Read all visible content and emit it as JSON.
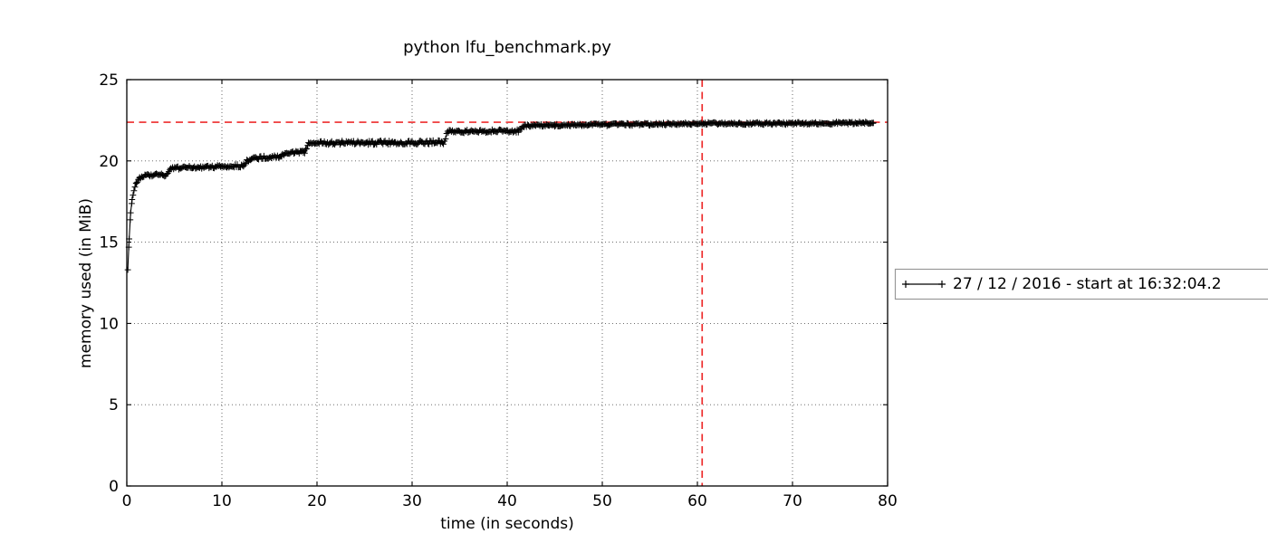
{
  "chart_data": {
    "type": "line",
    "title": "python lfu_benchmark.py",
    "xlabel": "time (in seconds)",
    "ylabel": "memory used (in MiB)",
    "xlim": [
      0,
      80
    ],
    "ylim": [
      0,
      25
    ],
    "xticks": [
      0,
      10,
      20,
      30,
      40,
      50,
      60,
      70,
      80
    ],
    "yticks": [
      0,
      5,
      10,
      15,
      20,
      25
    ],
    "grid": true,
    "grid_style": "dotted",
    "legend_position": "outside-right-clipped",
    "series": [
      {
        "name": "27 / 12 / 2016 - start at 16:32:04.2",
        "marker": "+",
        "color": "#000000",
        "sample_interval_s": 0.11,
        "noise_seed": 987654321,
        "anchors": [
          [
            0.1,
            13.3,
            0
          ],
          [
            0.25,
            15.2,
            0
          ],
          [
            0.4,
            16.8,
            0.03
          ],
          [
            0.55,
            17.6,
            0.04
          ],
          [
            0.75,
            18.2,
            0.05
          ],
          [
            1.0,
            18.65,
            0.07
          ],
          [
            1.35,
            18.95,
            0.09
          ],
          [
            2.0,
            19.1,
            0.11
          ],
          [
            4.3,
            19.15,
            0.11
          ],
          [
            4.7,
            19.55,
            0.1
          ],
          [
            7.0,
            19.6,
            0.1
          ],
          [
            12.3,
            19.7,
            0.1
          ],
          [
            12.7,
            20.05,
            0.1
          ],
          [
            13.1,
            20.15,
            0.1
          ],
          [
            16.3,
            20.3,
            0.1
          ],
          [
            16.8,
            20.5,
            0.09
          ],
          [
            18.7,
            20.55,
            0.09
          ],
          [
            19.1,
            21.05,
            0.1
          ],
          [
            20.0,
            21.1,
            0.12
          ],
          [
            33.3,
            21.15,
            0.12
          ],
          [
            33.8,
            21.8,
            0.1
          ],
          [
            41.2,
            21.85,
            0.1
          ],
          [
            41.8,
            22.15,
            0.08
          ],
          [
            45.0,
            22.2,
            0.08
          ],
          [
            55.0,
            22.25,
            0.08
          ],
          [
            60.7,
            22.3,
            0.08
          ],
          [
            70.0,
            22.3,
            0.08
          ],
          [
            78.5,
            22.35,
            0.07
          ]
        ]
      }
    ],
    "annotations": {
      "max_memory_mib": 22.38,
      "max_time_s": 60.5,
      "style": "red-dashed-crosshair"
    },
    "colors": {
      "line": "#000000",
      "max_lines": "#ed2c2c",
      "grid": "#222222",
      "frame": "#000000",
      "legend_border": "#999999",
      "legend_background": "#ffffff",
      "background": "#ffffff"
    }
  }
}
